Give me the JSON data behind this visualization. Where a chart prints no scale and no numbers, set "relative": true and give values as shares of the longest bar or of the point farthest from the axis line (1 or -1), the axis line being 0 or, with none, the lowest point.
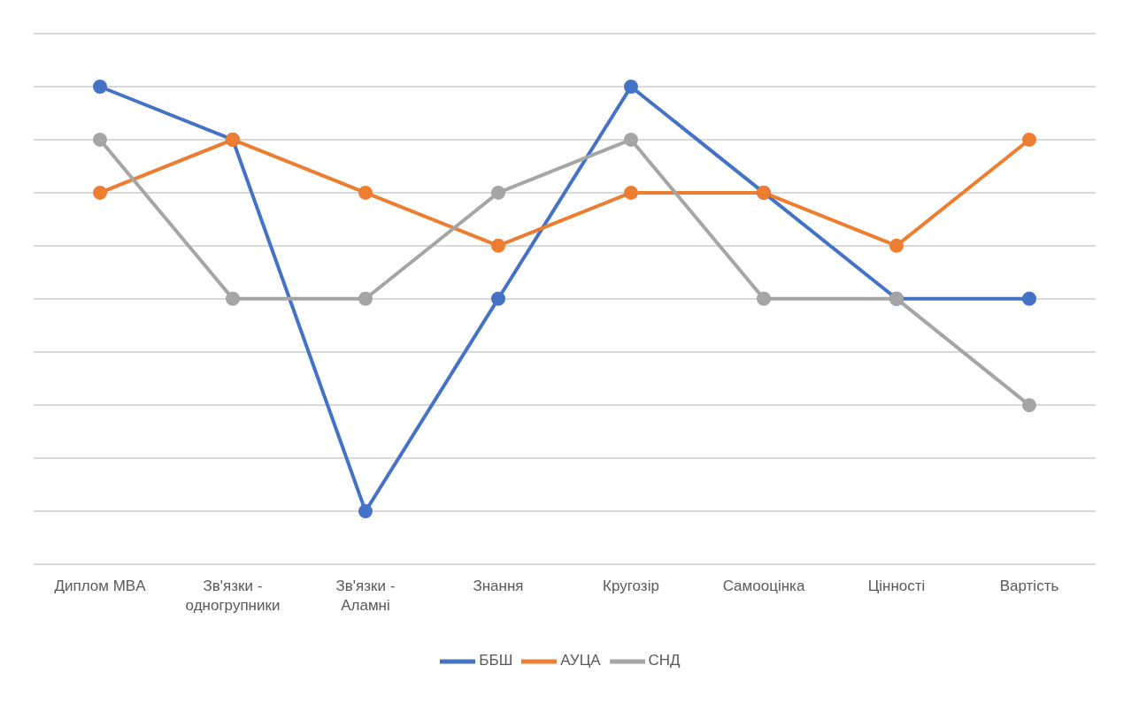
{
  "chart_data": {
    "type": "line",
    "relative": true,
    "categories": [
      "Диплом MBA",
      "Зв'язки - одногрупники",
      "Зв'язки - Аламні",
      "Знання",
      "Кругозір",
      "Самооцінка",
      "Цінності",
      "Вартість"
    ],
    "series": [
      {
        "name": "ББШ",
        "color": "#4472c4",
        "values": [
          1,
          0.889,
          0.111,
          0.556,
          1,
          0.778,
          0.556,
          0.556
        ]
      },
      {
        "name": "АУЦА",
        "color": "#ed7d31",
        "values": [
          0.778,
          0.889,
          0.778,
          0.667,
          0.778,
          0.778,
          0.667,
          0.889
        ]
      },
      {
        "name": "СНД",
        "color": "#a5a5a5",
        "values": [
          0.889,
          0.556,
          0.556,
          0.778,
          0.889,
          0.556,
          0.556,
          0.333
        ]
      }
    ],
    "grid": "y",
    "legend": "bottom",
    "marker": "circle",
    "line_style": "solid"
  }
}
